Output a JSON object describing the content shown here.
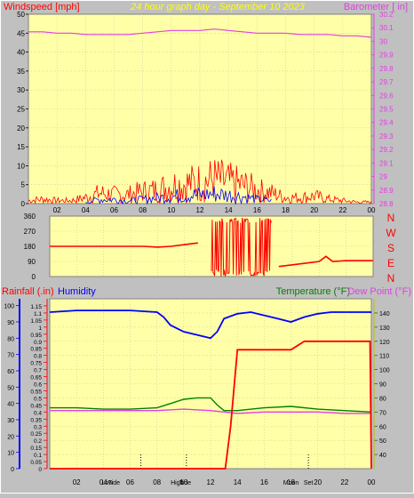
{
  "title": "24 hour graph day - September 10 2023",
  "colors": {
    "plot_bg": "#ffffa8",
    "page_bg": "#c0c0c0",
    "wind": "#ff0000",
    "gust_blue": "#0000ff",
    "barometer": "#e040e0",
    "direction": "#ff0000",
    "rain": "#ff0000",
    "humidity": "#0000ff",
    "temperature": "#008000",
    "dewpoint": "#e040e0",
    "title": "#ffff00",
    "left_axis_label_wind": "#ff0000",
    "left_axis_label_rain": "#ff0000",
    "right_axis_label_baro": "#e040e0"
  },
  "chart_data": [
    {
      "id": "wind-baro",
      "type": "line",
      "left_label": "Windspeed [mph]",
      "right_label": "Barometer [ in]",
      "x_ticks": [
        "02",
        "04",
        "06",
        "08",
        "10",
        "12",
        "14",
        "16",
        "18",
        "20",
        "22",
        "00"
      ],
      "x_range_hours": [
        0,
        24
      ],
      "ylim_left": [
        0,
        50
      ],
      "yticks_left": [
        "0",
        "5",
        "10",
        "15",
        "20",
        "25",
        "30",
        "35",
        "40",
        "45",
        "50"
      ],
      "ylim_right": [
        28.8,
        30.2
      ],
      "yticks_right": [
        "28.8",
        "28.9",
        "29",
        "29.1",
        "29.2",
        "29.3",
        "29.4",
        "29.5",
        "29.6",
        "29.7",
        "29.8",
        "29.9",
        "30",
        "30.1",
        "30.2"
      ],
      "series": [
        {
          "axis": "right",
          "x": [
            0,
            1,
            2,
            3,
            4,
            5,
            6,
            7,
            8,
            9,
            10,
            11,
            12,
            13,
            14,
            15,
            16,
            17,
            18,
            19,
            20,
            21,
            22,
            23,
            24
          ],
          "values": [
            30.07,
            30.07,
            30.06,
            30.06,
            30.05,
            30.05,
            30.05,
            30.05,
            30.06,
            30.07,
            30.08,
            30.08,
            30.08,
            30.09,
            30.08,
            30.07,
            30.06,
            30.06,
            30.06,
            30.05,
            30.05,
            30.05,
            30.04,
            30.04,
            30.03
          ]
        },
        {
          "axis": "left",
          "x": [
            0,
            1,
            2,
            3,
            4,
            5,
            6,
            7,
            8,
            9,
            10,
            11,
            12,
            13,
            14,
            15,
            16,
            17,
            18,
            19,
            20,
            21,
            22,
            23,
            24
          ],
          "values": [
            1,
            1.5,
            1,
            1,
            2,
            3.5,
            3,
            3,
            4,
            4.5,
            6,
            6.5,
            7,
            8,
            7,
            6,
            4.5,
            3.5,
            2,
            2,
            2.5,
            1.5,
            1,
            0.5,
            0.5
          ]
        },
        {
          "axis": "left",
          "x": [
            4,
            5,
            6,
            7,
            8,
            9,
            10,
            11,
            12,
            13,
            14,
            15,
            16,
            17
          ],
          "values": [
            0.5,
            1.5,
            1.5,
            1,
            1.5,
            2,
            2.5,
            3,
            3,
            3.5,
            3,
            2.5,
            1.5,
            1
          ]
        }
      ]
    },
    {
      "id": "direction",
      "type": "line",
      "right_labels": [
        "N",
        "W",
        "S",
        "E",
        "N"
      ],
      "x_range_hours": [
        0,
        24
      ],
      "ylim": [
        0,
        360
      ],
      "yticks": [
        "0",
        "90",
        "180",
        "270",
        "360"
      ],
      "series": [
        {
          "x": [
            0,
            2,
            4,
            6,
            7,
            8,
            9,
            10,
            11,
            12,
            12.5,
            13,
            13.5,
            14,
            14.5,
            15,
            15.5,
            16,
            16.5,
            17,
            18,
            19,
            20,
            20.5,
            21,
            22,
            23,
            24
          ],
          "values": [
            180,
            180,
            180,
            180,
            180,
            175,
            180,
            190,
            200,
            260,
            100,
            280,
            60,
            300,
            40,
            260,
            20,
            320,
            30,
            60,
            70,
            80,
            90,
            120,
            90,
            95,
            95,
            95
          ]
        }
      ]
    },
    {
      "id": "rain-humidity-temp",
      "type": "line",
      "left_label_rain": "Rainfall (.in)",
      "left_label_hum": "Humidity",
      "right_label_temp": "Temperature (°F)",
      "right_label_dew": "Dew Point (°F)",
      "x_ticks": [
        "02",
        "04",
        "06",
        "08",
        "10",
        "12",
        "14",
        "16",
        "18",
        "20",
        "22",
        "00"
      ],
      "x_range_hours": [
        0,
        24
      ],
      "ylim_rain": [
        0,
        1.2
      ],
      "yticks_rain": [
        "0",
        "0.05",
        "0.1",
        "0.15",
        "0.2",
        "0.25",
        "0.3",
        "0.35",
        "0.4",
        "0.45",
        "0.5",
        "0.55",
        "0.6",
        "0.65",
        "0.7",
        "0.75",
        "0.8",
        "0.85",
        "0.9",
        "0.95",
        "1",
        "1.05",
        "1.1",
        "1.15"
      ],
      "ylim_hum": [
        0,
        100
      ],
      "yticks_hum": [
        "0",
        "10",
        "20",
        "30",
        "40",
        "50",
        "60",
        "70",
        "80",
        "90",
        "100"
      ],
      "ylim_temp": [
        30,
        150
      ],
      "yticks_temp": [
        "40",
        "50",
        "60",
        "70",
        "80",
        "90",
        "100",
        "110",
        "120",
        "130",
        "140"
      ],
      "astro": [
        {
          "label": "Low",
          "hour": 4.3
        },
        {
          "label": "Tide",
          "hour": 4.8
        },
        {
          "label": "High",
          "hour": 9.5
        },
        {
          "label": "Tide",
          "hour": 10.1
        },
        {
          "label": "Moon",
          "hour": 18
        },
        {
          "label": "Set",
          "hour": 19.3
        }
      ],
      "dotted_hours": [
        6.8,
        10.2,
        19.3
      ],
      "series": [
        {
          "name": "Humidity",
          "axis": "hum",
          "x": [
            0,
            2,
            4,
            6,
            8,
            8.5,
            9,
            10,
            11,
            12,
            12.5,
            13,
            14,
            15,
            16,
            17,
            18,
            19,
            20,
            21,
            22,
            23,
            24
          ],
          "values": [
            96,
            97,
            97,
            97,
            96,
            93,
            88,
            84,
            82,
            80,
            84,
            92,
            95,
            96,
            94,
            92,
            90,
            93,
            95,
            96,
            96,
            96,
            96
          ]
        },
        {
          "name": "Temperature",
          "axis": "temp",
          "x": [
            0,
            2,
            4,
            6,
            8,
            9,
            10,
            11,
            12,
            12.5,
            13,
            14,
            16,
            18,
            20,
            22,
            24
          ],
          "values": [
            73,
            73,
            72,
            72,
            73,
            76,
            79,
            80,
            80,
            75,
            71,
            71,
            73,
            74,
            72,
            71,
            70
          ]
        },
        {
          "name": "Dew Point",
          "axis": "temp",
          "x": [
            0,
            2,
            4,
            6,
            8,
            10,
            12,
            13,
            14,
            16,
            18,
            20,
            22,
            24
          ],
          "values": [
            71,
            71,
            71,
            71,
            71,
            72,
            71,
            70,
            69,
            70,
            70,
            70,
            69,
            69
          ]
        },
        {
          "name": "Rainfall",
          "axis": "rain",
          "x": [
            0,
            12.3,
            13.1,
            13.5,
            14,
            16,
            17,
            18,
            19,
            20,
            21,
            23.9,
            24
          ],
          "values": [
            0,
            0,
            0,
            0.3,
            0.84,
            0.84,
            0.84,
            0.84,
            0.9,
            0.9,
            0.9,
            0.9,
            0
          ]
        }
      ]
    }
  ]
}
